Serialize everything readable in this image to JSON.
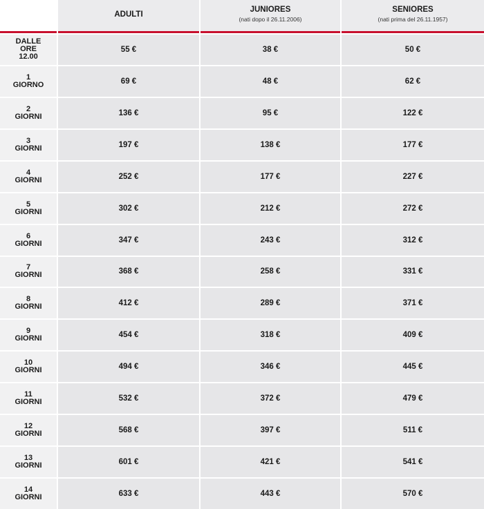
{
  "table": {
    "columns": [
      {
        "title": "ADULTI"
      },
      {
        "title": "JUNIORES",
        "note": "(nati dopo il 26.11.2006)"
      },
      {
        "title": "SENIORES",
        "note": "(nati prima del 26.11.1957)"
      }
    ],
    "rows": [
      {
        "label": [
          "DALLE",
          "ORE",
          "12.00"
        ],
        "prices": [
          "55 €",
          "38 €",
          "50 €"
        ]
      },
      {
        "label": [
          "1",
          "GIORNO"
        ],
        "prices": [
          "69 €",
          "48 €",
          "62 €"
        ]
      },
      {
        "label": [
          "2",
          "GIORNI"
        ],
        "prices": [
          "136 €",
          "95 €",
          "122 €"
        ]
      },
      {
        "label": [
          "3",
          "GIORNI"
        ],
        "prices": [
          "197 €",
          "138 €",
          "177 €"
        ]
      },
      {
        "label": [
          "4",
          "GIORNI"
        ],
        "prices": [
          "252 €",
          "177 €",
          "227 €"
        ]
      },
      {
        "label": [
          "5",
          "GIORNI"
        ],
        "prices": [
          "302 €",
          "212 €",
          "272 €"
        ]
      },
      {
        "label": [
          "6",
          "GIORNI"
        ],
        "prices": [
          "347 €",
          "243 €",
          "312 €"
        ]
      },
      {
        "label": [
          "7",
          "GIORNI"
        ],
        "prices": [
          "368 €",
          "258 €",
          "331 €"
        ]
      },
      {
        "label": [
          "8",
          "GIORNI"
        ],
        "prices": [
          "412 €",
          "289 €",
          "371 €"
        ]
      },
      {
        "label": [
          "9",
          "GIORNI"
        ],
        "prices": [
          "454 €",
          "318 €",
          "409 €"
        ]
      },
      {
        "label": [
          "10",
          "GIORNI"
        ],
        "prices": [
          "494 €",
          "346 €",
          "445 €"
        ]
      },
      {
        "label": [
          "11",
          "GIORNI"
        ],
        "prices": [
          "532 €",
          "372 €",
          "479 €"
        ]
      },
      {
        "label": [
          "12",
          "GIORNI"
        ],
        "prices": [
          "568 €",
          "397 €",
          "511 €"
        ]
      },
      {
        "label": [
          "13",
          "GIORNI"
        ],
        "prices": [
          "601 €",
          "421 €",
          "541 €"
        ]
      },
      {
        "label": [
          "14",
          "GIORNI"
        ],
        "prices": [
          "633 €",
          "443 €",
          "570 €"
        ]
      }
    ]
  }
}
